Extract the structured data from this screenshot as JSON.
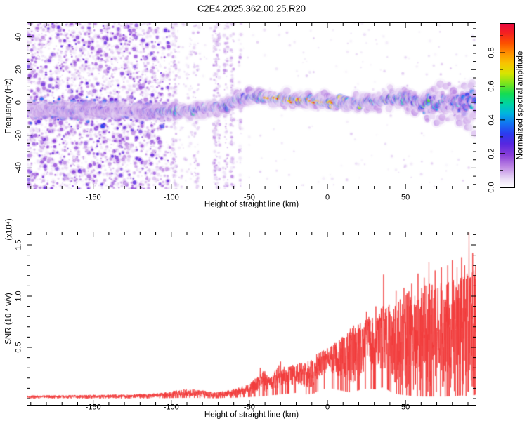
{
  "figure_title": "C2E4.2025.362.00.25.R20",
  "chart_data": [
    {
      "type": "heatmap",
      "title": "C2E4.2025.362.00.25.R20",
      "xlabel": "Height of straight line (km)",
      "ylabel": "Frequency (Hz)",
      "xlim": [
        -192.6,
        95.4
      ],
      "ylim": [
        -53.1,
        48.8
      ],
      "x_ticks": [
        {
          "v": -150,
          "label": "-150"
        },
        {
          "v": -100,
          "label": "-100"
        },
        {
          "v": -50,
          "label": "-50"
        },
        {
          "v": 0,
          "label": "0"
        },
        {
          "v": 50,
          "label": "50"
        }
      ],
      "y_ticks": [
        {
          "v": 40,
          "label": "40"
        },
        {
          "v": 20,
          "label": "20"
        },
        {
          "v": 0,
          "label": "0"
        },
        {
          "v": -20,
          "label": "-20"
        },
        {
          "v": -40,
          "label": "-40"
        }
      ],
      "x_minor_step": 10,
      "y_minor_step": 5,
      "grid": false,
      "colorbar": {
        "label": "Normalized spectral amplitude",
        "ticks": [
          {
            "v": 0.0,
            "label": "0.0"
          },
          {
            "v": 0.2,
            "label": "0.2"
          },
          {
            "v": 0.4,
            "label": "0.4"
          },
          {
            "v": 0.6,
            "label": "0.6"
          },
          {
            "v": 0.8,
            "label": "0.8"
          }
        ],
        "minor_step": 0.1,
        "range": [
          0,
          0.975
        ],
        "stops": [
          [
            0.0,
            "#ffffff"
          ],
          [
            0.05,
            "#eadcf6"
          ],
          [
            0.12,
            "#c08ae4"
          ],
          [
            0.19,
            "#8a3fd8"
          ],
          [
            0.26,
            "#5627e0"
          ],
          [
            0.32,
            "#2b3bee"
          ],
          [
            0.38,
            "#1273f2"
          ],
          [
            0.44,
            "#00b4e0"
          ],
          [
            0.5,
            "#00d4a0"
          ],
          [
            0.56,
            "#16dc50"
          ],
          [
            0.62,
            "#7ce41c"
          ],
          [
            0.68,
            "#d8e400"
          ],
          [
            0.74,
            "#f8c300"
          ],
          [
            0.8,
            "#ff9000"
          ],
          [
            0.86,
            "#fc5000"
          ],
          [
            0.92,
            "#f42020"
          ],
          [
            1.0,
            "#e4004c"
          ]
        ]
      },
      "noise_region": {
        "km_min": -192.6,
        "km_max": -101,
        "base_dots": 2300,
        "medium_dots": 700,
        "band_dots": 420,
        "band_center_hz": -5,
        "blue_cluster": {
          "km_min": -178,
          "km_max": -152,
          "hz": -5,
          "dots": 70
        }
      },
      "stripes": [
        {
          "km": -98,
          "w_km": 2.5,
          "dots": 90
        },
        {
          "km": -84,
          "w_km": 3.0,
          "dots": 60
        },
        {
          "km": -71,
          "w_km": 4.0,
          "dots": 150
        },
        {
          "km": -65,
          "w_km": 2.5,
          "dots": 80
        },
        {
          "km": -61,
          "w_km": 2.0,
          "dots": 70
        },
        {
          "km": -56,
          "w_km": 1.5,
          "dots": 40
        }
      ],
      "sparse_dots": 240,
      "boundary_dots": 120,
      "trace_points": [
        [
          -193,
          -5.0,
          0.3,
          2.5
        ],
        [
          -180,
          -4.0,
          0.32,
          2.5
        ],
        [
          -170,
          -4.5,
          0.38,
          2.5
        ],
        [
          -160,
          -5.0,
          0.4,
          2.5
        ],
        [
          -150,
          -5.0,
          0.34,
          2.5
        ],
        [
          -140,
          -4.5,
          0.3,
          2.5
        ],
        [
          -130,
          -5.0,
          0.32,
          2.5
        ],
        [
          -120,
          -5.5,
          0.36,
          2.5
        ],
        [
          -112,
          -6.0,
          0.45,
          2.5
        ],
        [
          -105,
          -6.0,
          0.6,
          2.5
        ],
        [
          -100,
          -5.5,
          0.68,
          2.5
        ],
        [
          -94,
          -5.0,
          0.72,
          2.5
        ],
        [
          -88,
          -5.0,
          0.66,
          2.5
        ],
        [
          -82,
          -4.5,
          0.7,
          2.8
        ],
        [
          -75,
          -3.5,
          0.62,
          3.0
        ],
        [
          -68,
          -2.5,
          0.6,
          3.2
        ],
        [
          -62,
          -0.5,
          0.62,
          3.0
        ],
        [
          -57,
          1.5,
          0.68,
          2.8
        ],
        [
          -51,
          2.5,
          0.7,
          2.6
        ],
        [
          -46,
          3.8,
          0.78,
          2.6
        ],
        [
          -42,
          3.5,
          0.8,
          2.6
        ],
        [
          -37,
          2.8,
          0.93,
          2.6
        ],
        [
          -31,
          2.2,
          0.95,
          2.6
        ],
        [
          -25,
          1.8,
          0.92,
          2.6
        ],
        [
          -19,
          1.5,
          0.95,
          2.6
        ],
        [
          -13,
          1.2,
          0.96,
          2.6
        ],
        [
          -7,
          0.8,
          0.94,
          2.6
        ],
        [
          -1,
          0.4,
          0.96,
          2.6
        ],
        [
          5,
          0.0,
          0.93,
          2.7
        ],
        [
          11,
          -0.5,
          0.85,
          2.7
        ],
        [
          17,
          -0.5,
          0.8,
          2.9
        ],
        [
          23,
          0.0,
          0.84,
          3.1
        ],
        [
          29,
          0.5,
          0.78,
          3.4
        ],
        [
          35,
          1.2,
          0.72,
          3.7
        ],
        [
          41,
          2.2,
          0.68,
          4.0
        ],
        [
          47,
          2.6,
          0.7,
          4.2
        ],
        [
          53,
          0.5,
          0.62,
          4.6
        ],
        [
          59,
          -1.0,
          0.58,
          5.0
        ],
        [
          65,
          0.0,
          0.6,
          5.6
        ],
        [
          71,
          -0.8,
          0.55,
          6.4
        ],
        [
          77,
          0.8,
          0.52,
          7.2
        ],
        [
          83,
          0.0,
          0.5,
          8.2
        ],
        [
          89,
          -0.8,
          0.48,
          9.2
        ],
        [
          95,
          0.2,
          0.52,
          10.5
        ]
      ],
      "seed": 42
    },
    {
      "type": "line",
      "xlabel": "Height of straight line (km)",
      "ylabel": "SNR (10 * v/v)",
      "y_scale_note": "(x10⁴)",
      "line_color": "#f23b3b",
      "xlim": [
        -192.6,
        95.4
      ],
      "ylim": [
        -0.07,
        1.63
      ],
      "x_ticks": [
        {
          "v": -150,
          "label": "-150"
        },
        {
          "v": -100,
          "label": "-100"
        },
        {
          "v": -50,
          "label": "-50"
        },
        {
          "v": 0,
          "label": "0"
        },
        {
          "v": 50,
          "label": "50"
        }
      ],
      "y_ticks": [
        {
          "v": 0.5,
          "label": "0.5"
        },
        {
          "v": 1.0,
          "label": "1.0"
        },
        {
          "v": 1.5,
          "label": "1.5"
        }
      ],
      "x_minor_step": 10,
      "y_minor_step": 0.1,
      "grid": false,
      "envelope": [
        [
          -193,
          0.005,
          0.03
        ],
        [
          -160,
          0.005,
          0.035
        ],
        [
          -130,
          0.005,
          0.04
        ],
        [
          -112,
          0.01,
          0.05
        ],
        [
          -100,
          0.015,
          0.07
        ],
        [
          -88,
          0.02,
          0.1
        ],
        [
          -80,
          0.015,
          0.08
        ],
        [
          -72,
          0.01,
          0.06
        ],
        [
          -64,
          0.02,
          0.08
        ],
        [
          -57,
          0.03,
          0.11
        ],
        [
          -50,
          0.04,
          0.15
        ],
        [
          -45,
          0.05,
          0.22
        ],
        [
          -41,
          0.06,
          0.28
        ],
        [
          -36,
          0.08,
          0.22
        ],
        [
          -31,
          0.1,
          0.33
        ],
        [
          -26,
          0.12,
          0.3
        ],
        [
          -20,
          0.14,
          0.35
        ],
        [
          -14,
          0.1,
          0.35
        ],
        [
          -9,
          0.12,
          0.42
        ],
        [
          -4,
          0.22,
          0.46
        ],
        [
          1,
          0.26,
          0.5
        ],
        [
          6,
          0.22,
          0.56
        ],
        [
          11,
          0.18,
          0.62
        ],
        [
          16,
          0.14,
          0.72
        ],
        [
          21,
          0.22,
          0.75
        ],
        [
          26,
          0.25,
          0.8
        ],
        [
          31,
          0.22,
          0.85
        ],
        [
          36,
          0.28,
          0.92
        ],
        [
          41,
          0.15,
          0.92
        ],
        [
          46,
          0.1,
          1.0
        ],
        [
          51,
          0.08,
          1.05
        ],
        [
          56,
          0.06,
          1.08
        ],
        [
          61,
          0.05,
          1.1
        ],
        [
          66,
          0.05,
          1.12
        ],
        [
          71,
          0.05,
          1.12
        ],
        [
          76,
          0.05,
          1.15
        ],
        [
          81,
          0.06,
          1.18
        ],
        [
          86,
          0.08,
          1.2
        ],
        [
          91,
          0.05,
          1.25
        ],
        [
          95,
          0.1,
          1.3
        ]
      ],
      "spikes": [
        [
          -43,
          0.3
        ],
        [
          -30,
          0.36
        ],
        [
          18,
          0.66
        ],
        [
          25,
          0.85
        ],
        [
          31,
          0.9
        ],
        [
          36,
          1.21
        ],
        [
          44,
          1.05
        ],
        [
          49,
          1.08
        ],
        [
          54,
          1.12
        ],
        [
          58,
          1.22
        ],
        [
          62,
          1.18
        ],
        [
          65,
          1.33
        ],
        [
          69,
          1.25
        ],
        [
          73,
          1.28
        ],
        [
          77,
          1.3
        ],
        [
          80,
          1.35
        ],
        [
          83,
          1.28
        ],
        [
          86,
          1.38
        ],
        [
          88,
          1.3
        ],
        [
          90.7,
          1.62
        ],
        [
          93,
          1.42
        ],
        [
          95,
          1.3
        ]
      ],
      "seed": 7
    }
  ]
}
